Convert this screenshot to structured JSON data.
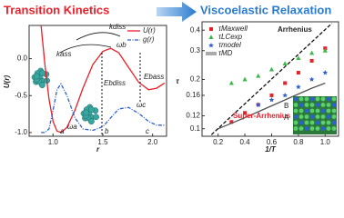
{
  "chart_data": [
    {
      "type": "line",
      "title": "Transition Kinetics",
      "x_label": "r",
      "y_label": "U(r)",
      "xlim": [
        0.76,
        2.14
      ],
      "ylim": [
        -1.05,
        0.45
      ],
      "xticks": [
        {
          "value": 1,
          "label": "1.0"
        },
        1.5,
        {
          "value": 2,
          "label": "2.0"
        }
      ],
      "yticks": [
        {
          "value": 0,
          "label": "0.0"
        },
        -0.5,
        {
          "value": -1,
          "label": "-1.0"
        }
      ],
      "x": [
        0.88,
        0.92,
        0.96,
        1.0,
        1.04,
        1.08,
        1.14,
        1.22,
        1.3,
        1.4,
        1.5,
        1.58,
        1.66,
        1.76,
        1.86,
        1.96,
        2.04,
        2.12
      ],
      "series": [
        {
          "name": "U(r)",
          "color": "#e8202a",
          "dash": false,
          "values": [
            0.45,
            -0.1,
            -0.55,
            -0.85,
            -0.98,
            -1.0,
            -0.93,
            -0.7,
            -0.4,
            -0.08,
            0.1,
            0.14,
            0.08,
            -0.12,
            -0.32,
            -0.42,
            -0.4,
            -0.33
          ]
        },
        {
          "name": "g(r)",
          "color": "#2f5fd0",
          "dash": true,
          "values": [
            -1.0,
            -1.0,
            -0.95,
            -0.7,
            -0.42,
            -0.34,
            -0.5,
            -0.8,
            -0.95,
            -0.97,
            -0.92,
            -0.8,
            -0.68,
            -0.66,
            -0.74,
            -0.85,
            -0.9,
            -0.9
          ]
        }
      ],
      "annotations": [
        "kass",
        "kdiss",
        "ωb",
        "Ebass",
        "Ebdiss",
        "ωa",
        "ωc",
        "a",
        "b",
        "c"
      ]
    },
    {
      "type": "scatter",
      "title": "Viscoelastic Relaxation",
      "x_label": "1/T",
      "y_label": "τ",
      "log_y": true,
      "xlim": [
        0.08,
        1.1
      ],
      "ylim": [
        0.09,
        0.45
      ],
      "xticks": [
        0.2,
        0.4,
        0.6,
        0.8,
        {
          "value": 1,
          "label": "1.0"
        }
      ],
      "yticks": [
        0.1,
        0.12,
        0.16,
        0.2,
        0.3,
        0.4
      ],
      "series": [
        {
          "name": "τMaxwell",
          "color": "#e8202a",
          "marker": "square",
          "x": [
            0.3,
            0.4,
            0.5,
            0.6,
            0.7,
            0.8,
            0.9,
            1.0
          ],
          "values": [
            0.11,
            0.125,
            0.14,
            0.16,
            0.19,
            0.22,
            0.26,
            0.31
          ]
        },
        {
          "name": "τLCexp",
          "color": "#3cb84a",
          "marker": "triangle",
          "x": [
            0.3,
            0.4,
            0.5,
            0.6,
            0.7,
            0.8,
            0.9,
            1.0
          ],
          "values": [
            0.19,
            0.2,
            0.21,
            0.23,
            0.25,
            0.27,
            0.29,
            0.3
          ]
        },
        {
          "name": "τmodel",
          "color": "#2f5fd0",
          "marker": "star",
          "x": [
            0.5,
            0.6,
            0.7,
            0.8,
            0.9,
            1.0
          ],
          "values": [
            0.14,
            0.15,
            0.16,
            0.18,
            0.2,
            0.22
          ]
        },
        {
          "name": "τMD",
          "color": "#555555",
          "marker": "line",
          "x": [
            0.2,
            0.3,
            0.4,
            0.5,
            0.6,
            0.7,
            0.8,
            0.9,
            1.0
          ],
          "values": [
            0.1,
            0.108,
            0.117,
            0.127,
            0.138,
            0.15,
            0.163,
            0.177,
            0.19
          ]
        },
        {
          "name": "Arrhenius",
          "color": "#111111",
          "marker": "dash",
          "legend": false,
          "x": [
            0.15,
            1.05
          ],
          "values": [
            0.092,
            0.44
          ]
        }
      ],
      "annotations": [
        "Super-Arrhenius",
        "B",
        "A"
      ]
    }
  ]
}
